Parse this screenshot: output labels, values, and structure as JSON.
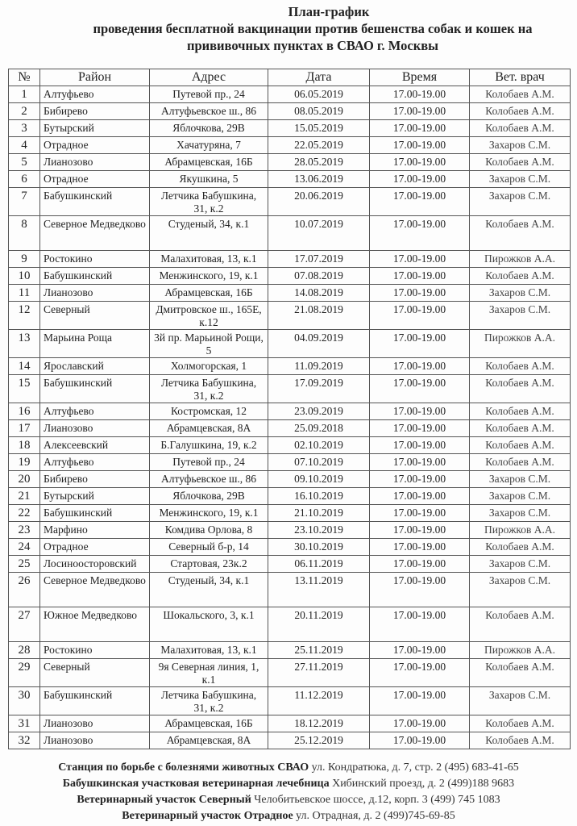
{
  "title": {
    "line1": "План-график",
    "line2": "проведения бесплатной вакцинации против бешенства собак и кошек на",
    "line3": "прививочных пунктах в СВАО г. Москвы"
  },
  "table": {
    "headers": [
      "№",
      "Район",
      "Адрес",
      "Дата",
      "Время",
      "Вет. врач"
    ],
    "rows": [
      [
        "1",
        "Алтуфьево",
        "Путевой пр., 24",
        "06.05.2019",
        "17.00-19.00",
        "Колобаев А.М."
      ],
      [
        "2",
        "Бибирево",
        "Алтуфьевское ш., 86",
        "08.05.2019",
        "17.00-19.00",
        "Колобаев А.М."
      ],
      [
        "3",
        "Бутырский",
        "Яблочкова, 29В",
        "15.05.2019",
        "17.00-19.00",
        "Колобаев А.М."
      ],
      [
        "4",
        "Отрадное",
        "Хачатуряна, 7",
        "22.05.2019",
        "17.00-19.00",
        "Захаров С.М."
      ],
      [
        "5",
        "Лианозово",
        "Абрамцевская, 16Б",
        "28.05.2019",
        "17.00-19.00",
        "Колобаев А.М."
      ],
      [
        "6",
        "Отрадное",
        "Якушкина, 5",
        "13.06.2019",
        "17.00-19.00",
        "Захаров С.М."
      ],
      [
        "7",
        "Бабушкинский",
        "Летчика Бабушкина, 31, к.2",
        "20.06.2019",
        "17.00-19.00",
        "Захаров С.М."
      ],
      [
        "8",
        "Северное Медведково",
        "Студеный, 34, к.1",
        "10.07.2019",
        "17.00-19.00",
        "Колобаев А.М."
      ],
      [
        "9",
        "Ростокино",
        "Малахитовая, 13, к.1",
        "17.07.2019",
        "17.00-19.00",
        "Пирожков А.А."
      ],
      [
        "10",
        "Бабушкинский",
        "Менжинского, 19, к.1",
        "07.08.2019",
        "17.00-19.00",
        "Колобаев А.М."
      ],
      [
        "11",
        "Лианозово",
        "Абрамцевская, 16Б",
        "14.08.2019",
        "17.00-19.00",
        "Захаров С.М."
      ],
      [
        "12",
        "Северный",
        "Дмитровское ш., 165Е, к.12",
        "21.08.2019",
        "17.00-19.00",
        "Захаров С.М."
      ],
      [
        "13",
        "Марьина Роща",
        "3й пр. Марьиной Рощи, 5",
        "04.09.2019",
        "17.00-19.00",
        "Пирожков А.А."
      ],
      [
        "14",
        "Ярославский",
        "Холмогорская, 1",
        "11.09.2019",
        "17.00-19.00",
        "Колобаев А.М."
      ],
      [
        "15",
        "Бабушкинский",
        "Летчика Бабушкина, 31, к.2",
        "17.09.2019",
        "17.00-19.00",
        "Колобаев А.М."
      ],
      [
        "16",
        "Алтуфьево",
        "Костромская, 12",
        "23.09.2019",
        "17.00-19.00",
        "Колобаев А.М."
      ],
      [
        "17",
        "Лианозово",
        "Абрамцевская, 8А",
        "25.09.2018",
        "17.00-19.00",
        "Колобаев А.М."
      ],
      [
        "18",
        "Алексеевский",
        "Б.Галушкина, 19, к.2",
        "02.10.2019",
        "17.00-19.00",
        "Колобаев А.М."
      ],
      [
        "19",
        "Алтуфьево",
        "Путевой пр., 24",
        "07.10.2019",
        "17.00-19.00",
        "Колобаев А.М."
      ],
      [
        "20",
        "Бибирево",
        "Алтуфьевское ш., 86",
        "09.10.2019",
        "17.00-19.00",
        "Захаров С.М."
      ],
      [
        "21",
        "Бутырский",
        "Яблочкова, 29В",
        "16.10.2019",
        "17.00-19.00",
        "Захаров С.М."
      ],
      [
        "22",
        "Бабушкинский",
        "Менжинского, 19, к.1",
        "21.10.2019",
        "17.00-19.00",
        "Захаров С.М."
      ],
      [
        "23",
        "Марфино",
        "Комдива Орлова, 8",
        "23.10.2019",
        "17.00-19.00",
        "Пирожков А.А."
      ],
      [
        "24",
        "Отрадное",
        "Северный б-р, 14",
        "30.10.2019",
        "17.00-19.00",
        "Колобаев А.М."
      ],
      [
        "25",
        "Лосиноосторовский",
        "Стартовая, 23к.2",
        "06.11.2019",
        "17.00-19.00",
        "Захаров С.М."
      ],
      [
        "26",
        "Северное Медведково",
        "Студеный, 34, к.1",
        "13.11.2019",
        "17.00-19.00",
        "Захаров С.М."
      ],
      [
        "27",
        "Южное Медведково",
        "Шокальского, 3, к.1",
        "20.11.2019",
        "17.00-19.00",
        "Колобаев А.М."
      ],
      [
        "28",
        "Ростокино",
        "Малахитовая, 13, к.1",
        "25.11.2019",
        "17.00-19.00",
        "Пирожков А.А."
      ],
      [
        "29",
        "Северный",
        "9я Северная линия, 1, к.1",
        "27.11.2019",
        "17.00-19.00",
        "Колобаев А.М."
      ],
      [
        "30",
        "Бабушкинский",
        "Летчика Бабушкина, 31, к.2",
        "11.12.2019",
        "17.00-19.00",
        "Захаров С.М."
      ],
      [
        "31",
        "Лианозово",
        "Абрамцевская, 16Б",
        "18.12.2019",
        "17.00-19.00",
        "Колобаев А.М."
      ],
      [
        "32",
        "Лианозово",
        "Абрамцевская, 8А",
        "25.12.2019",
        "17.00-19.00",
        "Колобаев А.М."
      ]
    ]
  },
  "footer": [
    {
      "name": "Станция по борьбе с болезнями животных СВАО",
      "address": "ул. Кондратюка, д. 7, стр. 2 (495) 683-41-65"
    },
    {
      "name": "Бабушкинская участковая ветеринарная лечебница",
      "address": "Хибинский проезд, д. 2 (499)188 9683"
    },
    {
      "name": "Ветеринарный участок Северный",
      "address": "Челобитьевское шоссе, д.12, корп. 3 (499) 745 1083"
    },
    {
      "name": "Ветеринарный участок Отрадное",
      "address": "ул. Отрадная, д. 2 (499)745-69-85"
    }
  ]
}
